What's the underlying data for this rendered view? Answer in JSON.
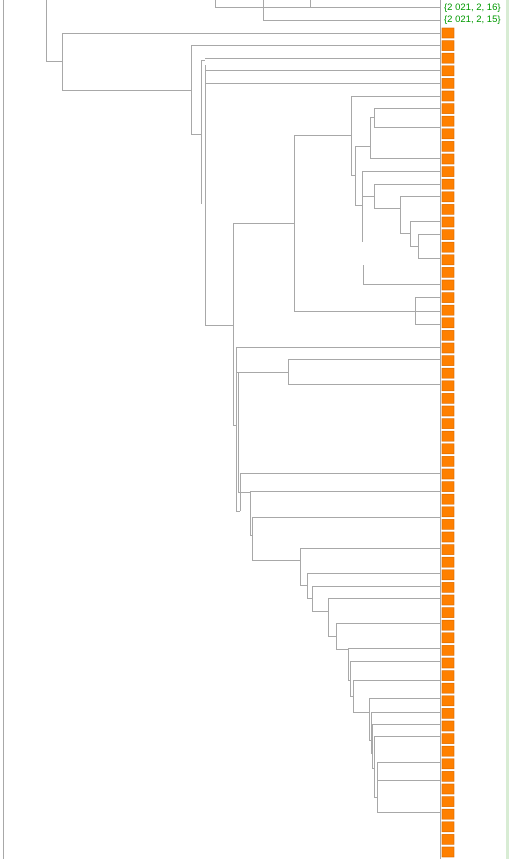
{
  "labels": [
    {
      "text": "{2 021, 2, 16}"
    },
    {
      "text": "{2 021, 2, 15}"
    }
  ],
  "colors": {
    "line": "#a8a8a8",
    "leaf": "#ff8000",
    "leaf_border": "#d86a00",
    "label": "#009900",
    "frame": "#d8ecd4"
  },
  "leaf_count": 66
}
